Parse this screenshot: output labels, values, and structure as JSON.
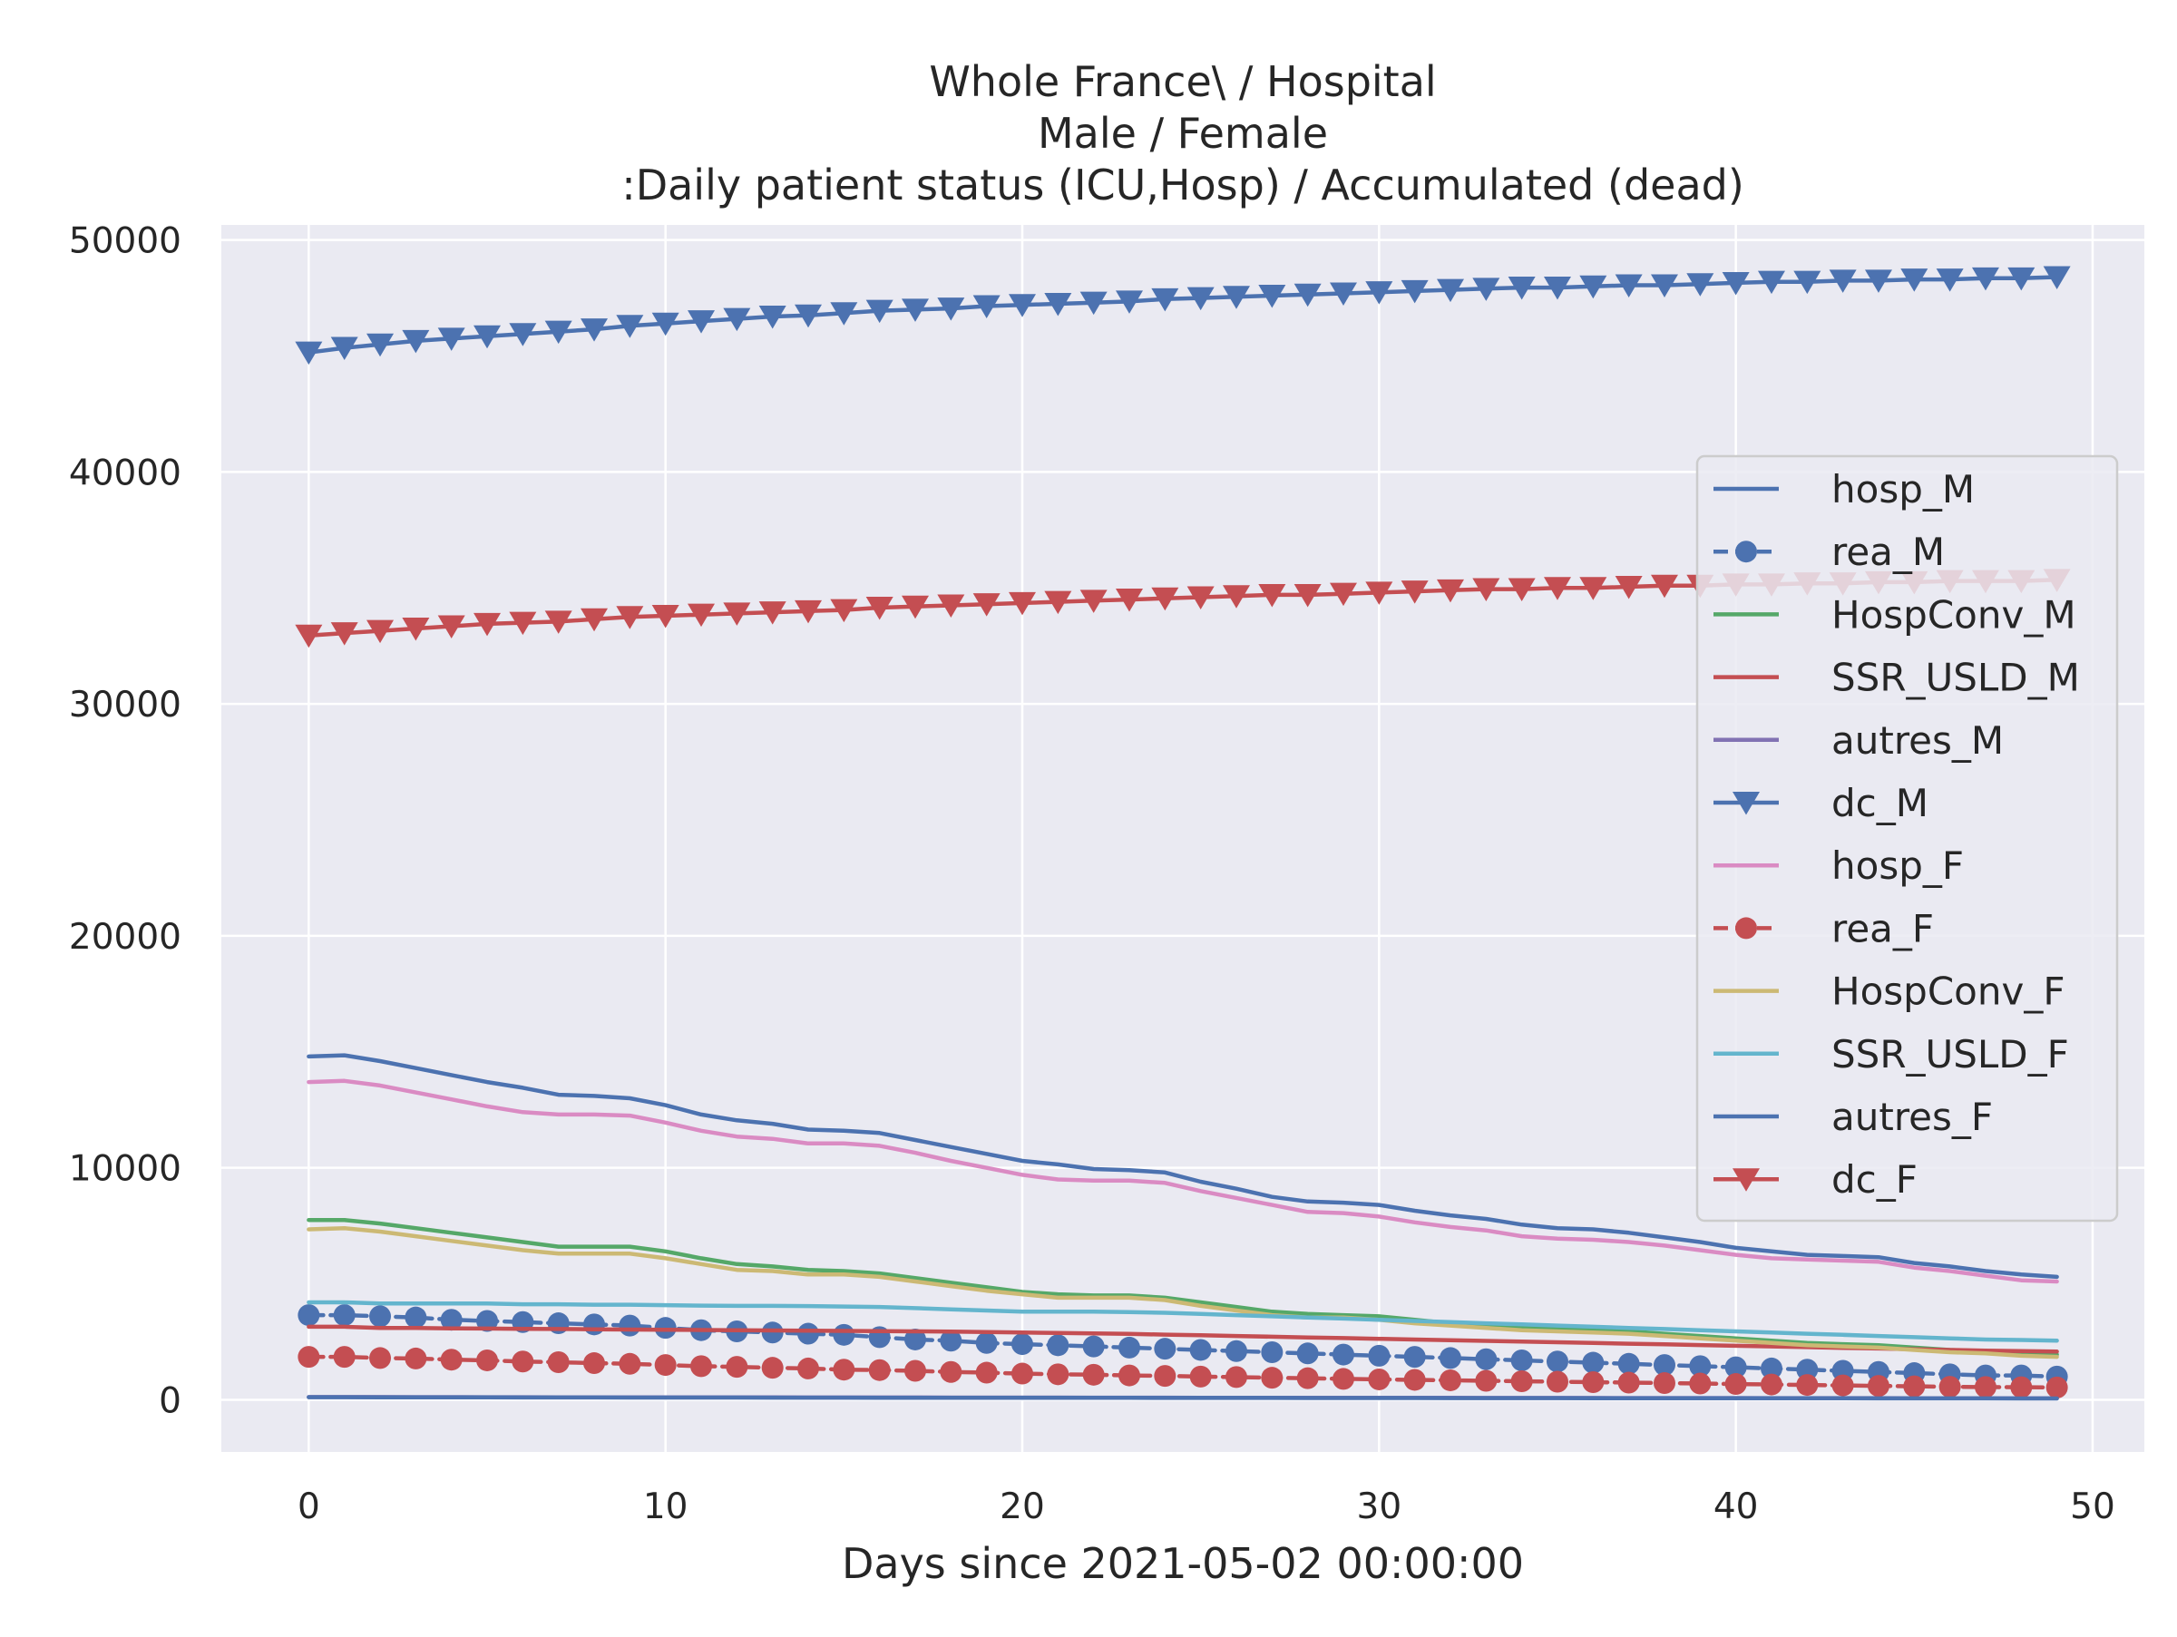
{
  "chart_data": {
    "type": "line",
    "title_lines": [
      "Whole France\\ / Hospital",
      "Male / Female",
      ":Daily patient status (ICU,Hosp) / Accumulated (dead)"
    ],
    "xlabel": "Days since 2021-05-02 00:00:00",
    "ylabel": "",
    "xlim": [
      -2.45,
      51.45
    ],
    "ylim": [
      -2250,
      50650
    ],
    "xticks": [
      0,
      10,
      20,
      30,
      40,
      50
    ],
    "xtick_labels": [
      "0",
      "10",
      "20",
      "30",
      "40",
      "50"
    ],
    "yticks": [
      0,
      10000,
      20000,
      30000,
      40000,
      50000
    ],
    "ytick_labels": [
      "0",
      "10000",
      "20000",
      "30000",
      "40000",
      "50000"
    ],
    "grid": true,
    "legend_position": "center-right",
    "background": "#eaeaf2",
    "series": [
      {
        "name": "hosp_M",
        "color": "#4c72b0",
        "line_style": "solid",
        "marker": "none",
        "values": [
          14800,
          14850,
          14600,
          14300,
          14000,
          13700,
          13450,
          13150,
          13100,
          13000,
          12700,
          12300,
          12050,
          11900,
          11650,
          11600,
          11500,
          11200,
          10900,
          10600,
          10300,
          10150,
          9950,
          9900,
          9800,
          9400,
          9100,
          8750,
          8550,
          8500,
          8400,
          8150,
          7950,
          7800,
          7550,
          7400,
          7350,
          7200,
          7000,
          6800,
          6550,
          6400,
          6250,
          6200,
          6150,
          5900,
          5750,
          5550,
          5400,
          5300
        ]
      },
      {
        "name": "rea_M",
        "color": "#4c72b0",
        "line_style": "dashed",
        "marker": "circle",
        "values": [
          3650,
          3650,
          3600,
          3550,
          3450,
          3400,
          3350,
          3300,
          3250,
          3200,
          3100,
          3000,
          2950,
          2900,
          2850,
          2800,
          2700,
          2600,
          2550,
          2450,
          2400,
          2350,
          2300,
          2250,
          2200,
          2150,
          2100,
          2050,
          2000,
          1950,
          1900,
          1850,
          1800,
          1750,
          1700,
          1650,
          1600,
          1550,
          1500,
          1450,
          1400,
          1350,
          1300,
          1250,
          1200,
          1150,
          1100,
          1050,
          1050,
          1000
        ]
      },
      {
        "name": "HospConv_M",
        "color": "#55a868",
        "line_style": "solid",
        "marker": "none",
        "values": [
          7750,
          7750,
          7600,
          7400,
          7200,
          7000,
          6800,
          6600,
          6600,
          6600,
          6400,
          6100,
          5850,
          5750,
          5600,
          5550,
          5450,
          5250,
          5050,
          4850,
          4650,
          4550,
          4500,
          4500,
          4400,
          4200,
          4000,
          3800,
          3700,
          3650,
          3600,
          3450,
          3300,
          3200,
          3100,
          3050,
          3000,
          2950,
          2850,
          2750,
          2650,
          2550,
          2450,
          2400,
          2350,
          2250,
          2150,
          2100,
          2000,
          1950
        ]
      },
      {
        "name": "SSR_USLD_M",
        "color": "#c44e52",
        "line_style": "solid",
        "marker": "none",
        "values": [
          3150,
          3150,
          3100,
          3100,
          3080,
          3070,
          3060,
          3050,
          3040,
          3030,
          3020,
          3010,
          3000,
          2990,
          2980,
          2970,
          2960,
          2950,
          2940,
          2920,
          2900,
          2880,
          2860,
          2840,
          2810,
          2780,
          2750,
          2720,
          2690,
          2660,
          2630,
          2600,
          2570,
          2540,
          2510,
          2480,
          2450,
          2420,
          2390,
          2360,
          2330,
          2300,
          2270,
          2240,
          2210,
          2180,
          2150,
          2120,
          2100,
          2080
        ]
      },
      {
        "name": "autres_M",
        "color": "#8172b3",
        "line_style": "solid",
        "marker": "none",
        "values": [
          120,
          120,
          118,
          116,
          114,
          112,
          110,
          108,
          107,
          106,
          105,
          104,
          103,
          102,
          101,
          100,
          99,
          98,
          97,
          96,
          95,
          94,
          93,
          92,
          91,
          90,
          89,
          88,
          87,
          86,
          85,
          84,
          83,
          82,
          81,
          80,
          79,
          78,
          77,
          76,
          75,
          74,
          73,
          72,
          71,
          70,
          69,
          68,
          67,
          66
        ]
      },
      {
        "name": "dc_M",
        "color": "#4c72b0",
        "line_style": "solid",
        "marker": "triangle-down",
        "values": [
          45150,
          45350,
          45500,
          45650,
          45750,
          45850,
          45950,
          46050,
          46150,
          46300,
          46400,
          46500,
          46600,
          46700,
          46750,
          46850,
          46950,
          47000,
          47050,
          47150,
          47200,
          47250,
          47300,
          47350,
          47450,
          47500,
          47550,
          47600,
          47650,
          47700,
          47750,
          47800,
          47850,
          47900,
          47950,
          47950,
          48000,
          48050,
          48050,
          48100,
          48150,
          48200,
          48200,
          48250,
          48250,
          48300,
          48300,
          48350,
          48350,
          48400
        ]
      },
      {
        "name": "hosp_F",
        "color": "#da8bc3",
        "line_style": "solid",
        "marker": "none",
        "values": [
          13700,
          13750,
          13550,
          13250,
          12950,
          12650,
          12400,
          12300,
          12300,
          12250,
          11950,
          11600,
          11350,
          11250,
          11050,
          11050,
          10950,
          10650,
          10300,
          10000,
          9700,
          9500,
          9450,
          9450,
          9350,
          9000,
          8700,
          8400,
          8100,
          8050,
          7900,
          7650,
          7450,
          7300,
          7050,
          6950,
          6900,
          6800,
          6650,
          6450,
          6250,
          6100,
          6050,
          6000,
          5950,
          5700,
          5550,
          5350,
          5150,
          5100
        ]
      },
      {
        "name": "rea_F",
        "color": "#c44e52",
        "line_style": "dashed",
        "marker": "circle",
        "values": [
          1850,
          1850,
          1800,
          1780,
          1730,
          1700,
          1650,
          1620,
          1580,
          1550,
          1500,
          1450,
          1420,
          1380,
          1350,
          1300,
          1280,
          1250,
          1200,
          1170,
          1130,
          1100,
          1080,
          1050,
          1030,
          1000,
          980,
          950,
          930,
          900,
          880,
          860,
          840,
          820,
          800,
          780,
          760,
          740,
          720,
          700,
          680,
          660,
          640,
          620,
          600,
          580,
          560,
          550,
          540,
          530
        ]
      },
      {
        "name": "HospConv_F",
        "color": "#ccb974",
        "line_style": "solid",
        "marker": "none",
        "values": [
          7350,
          7400,
          7250,
          7050,
          6850,
          6650,
          6450,
          6300,
          6300,
          6300,
          6100,
          5850,
          5600,
          5550,
          5400,
          5400,
          5300,
          5100,
          4900,
          4700,
          4550,
          4400,
          4400,
          4400,
          4300,
          4050,
          3850,
          3650,
          3550,
          3550,
          3450,
          3300,
          3200,
          3100,
          3000,
          2950,
          2900,
          2850,
          2750,
          2650,
          2550,
          2450,
          2350,
          2300,
          2250,
          2150,
          2050,
          2000,
          1900,
          1850
        ]
      },
      {
        "name": "SSR_USLD_F",
        "color": "#64b5cd",
        "line_style": "solid",
        "marker": "none",
        "values": [
          4200,
          4200,
          4150,
          4150,
          4150,
          4150,
          4120,
          4120,
          4100,
          4100,
          4080,
          4060,
          4050,
          4050,
          4040,
          4020,
          4000,
          3950,
          3900,
          3850,
          3800,
          3800,
          3800,
          3780,
          3750,
          3700,
          3650,
          3600,
          3550,
          3500,
          3450,
          3400,
          3350,
          3300,
          3250,
          3200,
          3150,
          3100,
          3050,
          3000,
          2950,
          2900,
          2850,
          2800,
          2750,
          2700,
          2650,
          2600,
          2580,
          2550
        ]
      },
      {
        "name": "autres_F",
        "color": "#4c72b0",
        "line_style": "solid",
        "marker": "none",
        "values": [
          110,
          110,
          108,
          106,
          104,
          102,
          100,
          99,
          98,
          97,
          96,
          95,
          94,
          93,
          92,
          91,
          90,
          89,
          88,
          87,
          86,
          85,
          84,
          83,
          82,
          81,
          80,
          79,
          78,
          77,
          76,
          75,
          74,
          73,
          72,
          71,
          70,
          69,
          68,
          67,
          66,
          65,
          64,
          63,
          62,
          61,
          60,
          59,
          58,
          57
        ]
      },
      {
        "name": "dc_F",
        "color": "#c44e52",
        "line_style": "solid",
        "marker": "triangle-down",
        "values": [
          32950,
          33050,
          33150,
          33250,
          33350,
          33450,
          33500,
          33550,
          33650,
          33750,
          33800,
          33850,
          33900,
          33950,
          34000,
          34050,
          34150,
          34200,
          34250,
          34300,
          34350,
          34400,
          34450,
          34500,
          34550,
          34600,
          34650,
          34700,
          34700,
          34750,
          34800,
          34850,
          34900,
          34950,
          34950,
          35000,
          35000,
          35050,
          35100,
          35100,
          35150,
          35150,
          35200,
          35200,
          35250,
          35250,
          35300,
          35300,
          35300,
          35350
        ]
      }
    ]
  }
}
